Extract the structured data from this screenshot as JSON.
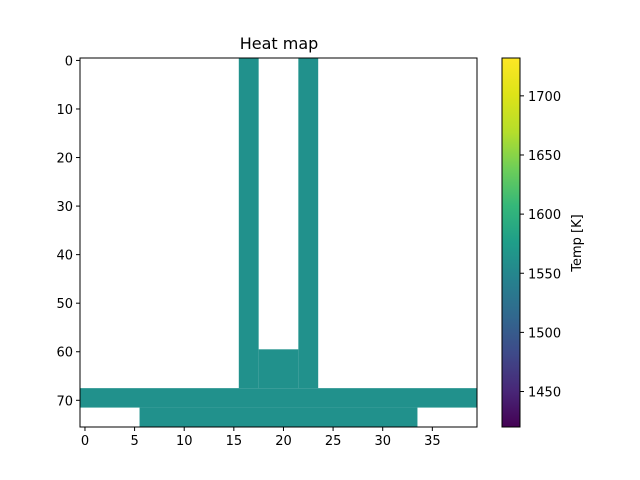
{
  "chart_data": {
    "type": "heatmap",
    "title": "Heat map",
    "colorbar": {
      "label": "Temp [K]",
      "range": [
        1420,
        1732
      ],
      "ticks": [
        1450,
        1500,
        1550,
        1600,
        1650,
        1700
      ],
      "colormap": "viridis"
    },
    "x_range": [
      -0.5,
      39.5
    ],
    "y_range": [
      75.5,
      -0.5
    ],
    "x_ticks": [
      0,
      5,
      10,
      15,
      20,
      25,
      30,
      35
    ],
    "y_ticks": [
      0,
      10,
      20,
      30,
      40,
      50,
      60,
      70
    ],
    "cell_value": 1600,
    "cell_color": "#21918c",
    "filled_regions": [
      {
        "x": [
          16,
          17
        ],
        "y": [
          0,
          67
        ]
      },
      {
        "x": [
          22,
          23
        ],
        "y": [
          0,
          67
        ]
      },
      {
        "x": [
          18,
          21
        ],
        "y": [
          60,
          67
        ]
      },
      {
        "x": [
          0,
          39
        ],
        "y": [
          68,
          71
        ]
      },
      {
        "x": [
          6,
          33
        ],
        "y": [
          72,
          75
        ]
      }
    ]
  }
}
